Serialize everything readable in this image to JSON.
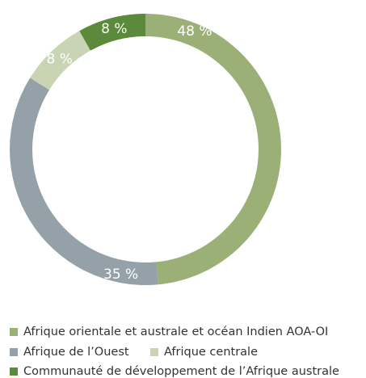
{
  "chart_data": {
    "type": "donut",
    "categories": [
      "Afrique orientale et australe et océan Indien AOA-OI",
      "Afrique de l’Ouest",
      "Afrique centrale",
      "Communauté de développement de l’Afrique australe"
    ],
    "values": [
      48,
      35,
      8,
      8
    ],
    "value_labels": [
      "48 %",
      "35 %",
      "8 %",
      "8 %"
    ],
    "colors": [
      "#9bb076",
      "#95a1a9",
      "#c8d4b3",
      "#5a8a3a"
    ]
  }
}
